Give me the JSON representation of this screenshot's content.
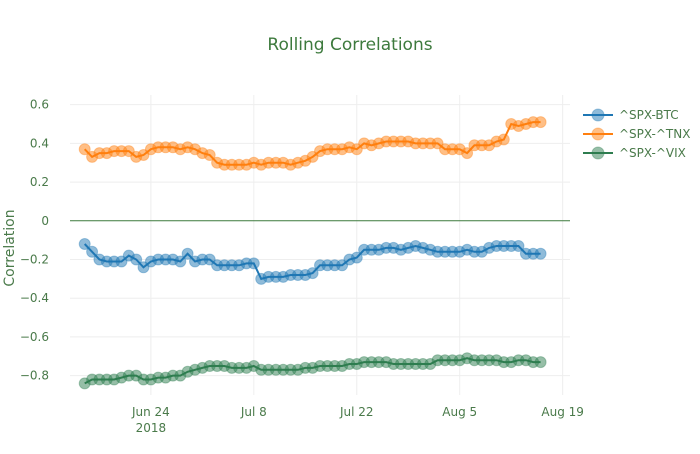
{
  "chart_data": {
    "type": "line",
    "title": "Rolling Correlations",
    "xlabel": "",
    "ylabel": "Correlation",
    "x_tick_labels": [
      "Jun 24\n2018",
      "Jul 8",
      "Jul 22",
      "Aug 5",
      "Aug 19"
    ],
    "x_tick_dates": [
      "2018-06-24",
      "2018-07-08",
      "2018-07-22",
      "2018-08-05",
      "2018-08-19"
    ],
    "xlim": [
      "2018-06-13",
      "2018-08-20"
    ],
    "y_tick_labels": [
      "0.6",
      "0.4",
      "0.2",
      "0",
      "−0.2",
      "−0.4",
      "−0.6",
      "−0.8"
    ],
    "y_ticks": [
      0.6,
      0.4,
      0.2,
      0,
      -0.2,
      -0.4,
      -0.6,
      -0.8
    ],
    "ylim": [
      -0.9,
      0.65
    ],
    "grid": true,
    "zero_line": true,
    "legend_position": "right",
    "colors": {
      "title": "#3d7a3d",
      "text": "#4a7a4a",
      "grid": "#eeeeee",
      "zeroline": "#3d7a3d"
    },
    "series": [
      {
        "name": "^SPX-BTC",
        "color": "#1f77b4",
        "x": [
          "2018-06-15",
          "2018-06-16",
          "2018-06-17",
          "2018-06-18",
          "2018-06-19",
          "2018-06-20",
          "2018-06-21",
          "2018-06-22",
          "2018-06-23",
          "2018-06-24",
          "2018-06-25",
          "2018-06-26",
          "2018-06-27",
          "2018-06-28",
          "2018-06-29",
          "2018-06-30",
          "2018-07-01",
          "2018-07-02",
          "2018-07-03",
          "2018-07-04",
          "2018-07-05",
          "2018-07-06",
          "2018-07-07",
          "2018-07-08",
          "2018-07-09",
          "2018-07-10",
          "2018-07-11",
          "2018-07-12",
          "2018-07-13",
          "2018-07-14",
          "2018-07-15",
          "2018-07-16",
          "2018-07-17",
          "2018-07-18",
          "2018-07-19",
          "2018-07-20",
          "2018-07-21",
          "2018-07-22",
          "2018-07-23",
          "2018-07-24",
          "2018-07-25",
          "2018-07-26",
          "2018-07-27",
          "2018-07-28",
          "2018-07-29",
          "2018-07-30",
          "2018-07-31",
          "2018-08-01",
          "2018-08-02",
          "2018-08-03",
          "2018-08-04",
          "2018-08-05",
          "2018-08-06",
          "2018-08-07",
          "2018-08-08",
          "2018-08-09",
          "2018-08-10",
          "2018-08-11",
          "2018-08-12",
          "2018-08-13",
          "2018-08-14",
          "2018-08-15",
          "2018-08-16"
        ],
        "values": [
          -0.12,
          -0.16,
          -0.2,
          -0.21,
          -0.21,
          -0.21,
          -0.18,
          -0.2,
          -0.24,
          -0.21,
          -0.2,
          -0.2,
          -0.2,
          -0.21,
          -0.17,
          -0.21,
          -0.2,
          -0.2,
          -0.23,
          -0.23,
          -0.23,
          -0.23,
          -0.22,
          -0.22,
          -0.3,
          -0.29,
          -0.29,
          -0.29,
          -0.28,
          -0.28,
          -0.28,
          -0.27,
          -0.23,
          -0.23,
          -0.23,
          -0.23,
          -0.2,
          -0.19,
          -0.15,
          -0.15,
          -0.15,
          -0.14,
          -0.14,
          -0.15,
          -0.14,
          -0.13,
          -0.14,
          -0.15,
          -0.16,
          -0.16,
          -0.16,
          -0.16,
          -0.15,
          -0.16,
          -0.16,
          -0.14,
          -0.13,
          -0.13,
          -0.13,
          -0.13,
          -0.17,
          -0.17,
          -0.17
        ]
      },
      {
        "name": "^SPX-^TNX",
        "color": "#ff7f0e",
        "x": [
          "2018-06-15",
          "2018-06-16",
          "2018-06-17",
          "2018-06-18",
          "2018-06-19",
          "2018-06-20",
          "2018-06-21",
          "2018-06-22",
          "2018-06-23",
          "2018-06-24",
          "2018-06-25",
          "2018-06-26",
          "2018-06-27",
          "2018-06-28",
          "2018-06-29",
          "2018-06-30",
          "2018-07-01",
          "2018-07-02",
          "2018-07-03",
          "2018-07-04",
          "2018-07-05",
          "2018-07-06",
          "2018-07-07",
          "2018-07-08",
          "2018-07-09",
          "2018-07-10",
          "2018-07-11",
          "2018-07-12",
          "2018-07-13",
          "2018-07-14",
          "2018-07-15",
          "2018-07-16",
          "2018-07-17",
          "2018-07-18",
          "2018-07-19",
          "2018-07-20",
          "2018-07-21",
          "2018-07-22",
          "2018-07-23",
          "2018-07-24",
          "2018-07-25",
          "2018-07-26",
          "2018-07-27",
          "2018-07-28",
          "2018-07-29",
          "2018-07-30",
          "2018-07-31",
          "2018-08-01",
          "2018-08-02",
          "2018-08-03",
          "2018-08-04",
          "2018-08-05",
          "2018-08-06",
          "2018-08-07",
          "2018-08-08",
          "2018-08-09",
          "2018-08-10",
          "2018-08-11",
          "2018-08-12",
          "2018-08-13",
          "2018-08-14",
          "2018-08-15",
          "2018-08-16"
        ],
        "values": [
          0.37,
          0.33,
          0.35,
          0.35,
          0.36,
          0.36,
          0.36,
          0.33,
          0.34,
          0.37,
          0.38,
          0.38,
          0.38,
          0.37,
          0.38,
          0.37,
          0.35,
          0.34,
          0.3,
          0.29,
          0.29,
          0.29,
          0.29,
          0.3,
          0.29,
          0.3,
          0.3,
          0.3,
          0.29,
          0.3,
          0.31,
          0.33,
          0.36,
          0.37,
          0.37,
          0.37,
          0.38,
          0.37,
          0.4,
          0.39,
          0.4,
          0.41,
          0.41,
          0.41,
          0.41,
          0.4,
          0.4,
          0.4,
          0.4,
          0.37,
          0.37,
          0.37,
          0.35,
          0.39,
          0.39,
          0.39,
          0.41,
          0.42,
          0.5,
          0.49,
          0.5,
          0.51,
          0.51
        ]
      },
      {
        "name": "^SPX-^VIX",
        "color": "#2e7d4f",
        "x": [
          "2018-06-15",
          "2018-06-16",
          "2018-06-17",
          "2018-06-18",
          "2018-06-19",
          "2018-06-20",
          "2018-06-21",
          "2018-06-22",
          "2018-06-23",
          "2018-06-24",
          "2018-06-25",
          "2018-06-26",
          "2018-06-27",
          "2018-06-28",
          "2018-06-29",
          "2018-06-30",
          "2018-07-01",
          "2018-07-02",
          "2018-07-03",
          "2018-07-04",
          "2018-07-05",
          "2018-07-06",
          "2018-07-07",
          "2018-07-08",
          "2018-07-09",
          "2018-07-10",
          "2018-07-11",
          "2018-07-12",
          "2018-07-13",
          "2018-07-14",
          "2018-07-15",
          "2018-07-16",
          "2018-07-17",
          "2018-07-18",
          "2018-07-19",
          "2018-07-20",
          "2018-07-21",
          "2018-07-22",
          "2018-07-23",
          "2018-07-24",
          "2018-07-25",
          "2018-07-26",
          "2018-07-27",
          "2018-07-28",
          "2018-07-29",
          "2018-07-30",
          "2018-07-31",
          "2018-08-01",
          "2018-08-02",
          "2018-08-03",
          "2018-08-04",
          "2018-08-05",
          "2018-08-06",
          "2018-08-07",
          "2018-08-08",
          "2018-08-09",
          "2018-08-10",
          "2018-08-11",
          "2018-08-12",
          "2018-08-13",
          "2018-08-14",
          "2018-08-15",
          "2018-08-16"
        ],
        "values": [
          -0.84,
          -0.82,
          -0.82,
          -0.82,
          -0.82,
          -0.81,
          -0.8,
          -0.8,
          -0.82,
          -0.82,
          -0.81,
          -0.81,
          -0.8,
          -0.8,
          -0.78,
          -0.77,
          -0.76,
          -0.75,
          -0.75,
          -0.75,
          -0.76,
          -0.76,
          -0.76,
          -0.75,
          -0.77,
          -0.77,
          -0.77,
          -0.77,
          -0.77,
          -0.77,
          -0.76,
          -0.76,
          -0.75,
          -0.75,
          -0.75,
          -0.75,
          -0.74,
          -0.74,
          -0.73,
          -0.73,
          -0.73,
          -0.73,
          -0.74,
          -0.74,
          -0.74,
          -0.74,
          -0.74,
          -0.74,
          -0.72,
          -0.72,
          -0.72,
          -0.72,
          -0.71,
          -0.72,
          -0.72,
          -0.72,
          -0.72,
          -0.73,
          -0.73,
          -0.72,
          -0.72,
          -0.73,
          -0.73
        ]
      }
    ]
  }
}
